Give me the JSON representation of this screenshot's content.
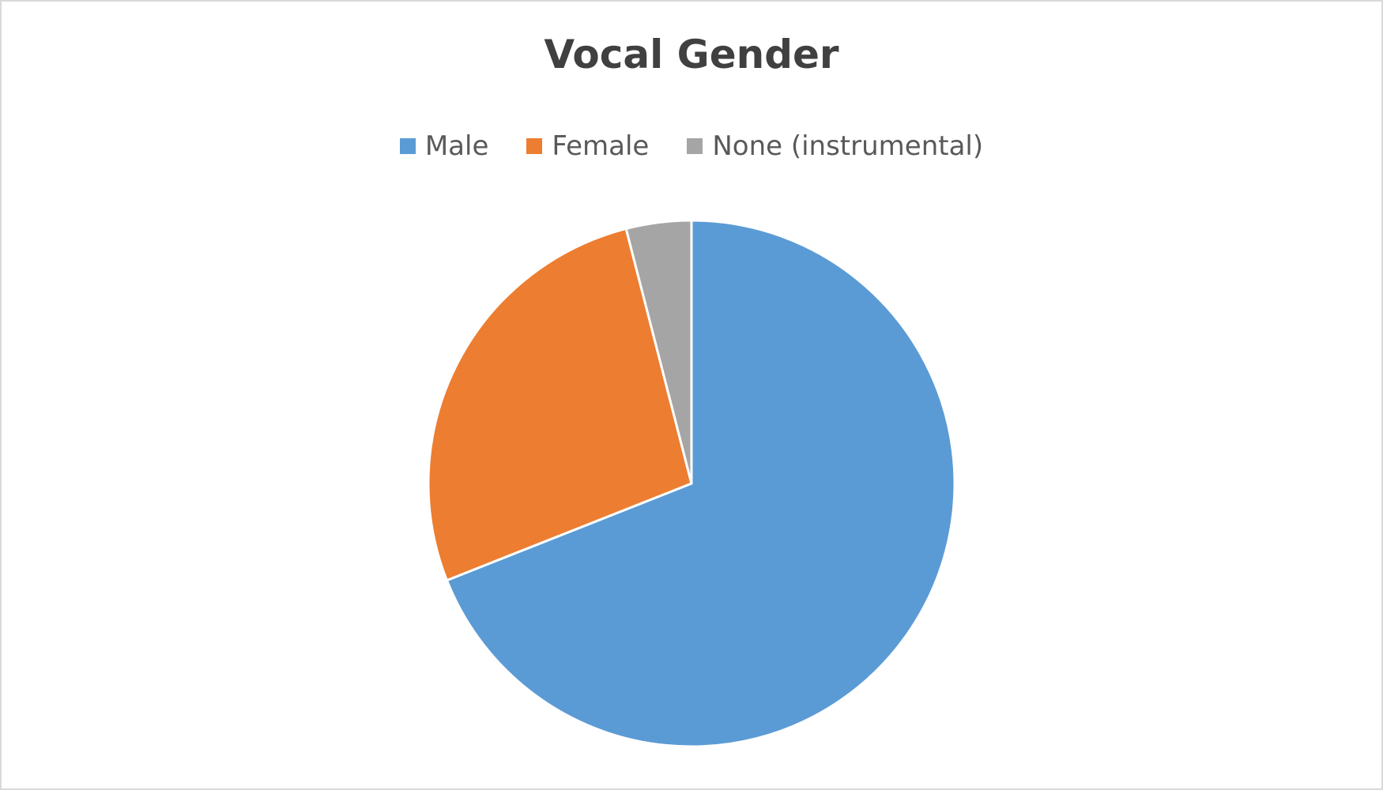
{
  "chart_data": {
    "type": "pie",
    "title": "Vocal Gender",
    "legend_position": "top",
    "categories": [
      "Male",
      "Female",
      "None (instrumental)"
    ],
    "values": [
      69,
      27,
      4
    ],
    "colors": [
      "#5b9bd5",
      "#ed7d31",
      "#a5a5a5"
    ],
    "slice_border_color": "#ffffff",
    "start_angle_deg": 0,
    "direction": "clockwise"
  }
}
